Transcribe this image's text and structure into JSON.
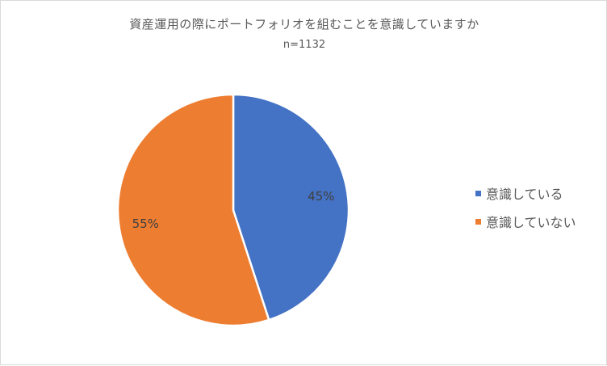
{
  "chart_data": {
    "type": "pie",
    "title": "資産運用の際にポートフォリオを組むことを意識していますか",
    "subtitle": "n=1132",
    "categories": [
      "意識している",
      "意識していない"
    ],
    "values": [
      45,
      55
    ],
    "data_labels": [
      "45%",
      "55%"
    ],
    "colors": [
      "#4472C4",
      "#ED7D31"
    ],
    "legend_position": "right"
  }
}
